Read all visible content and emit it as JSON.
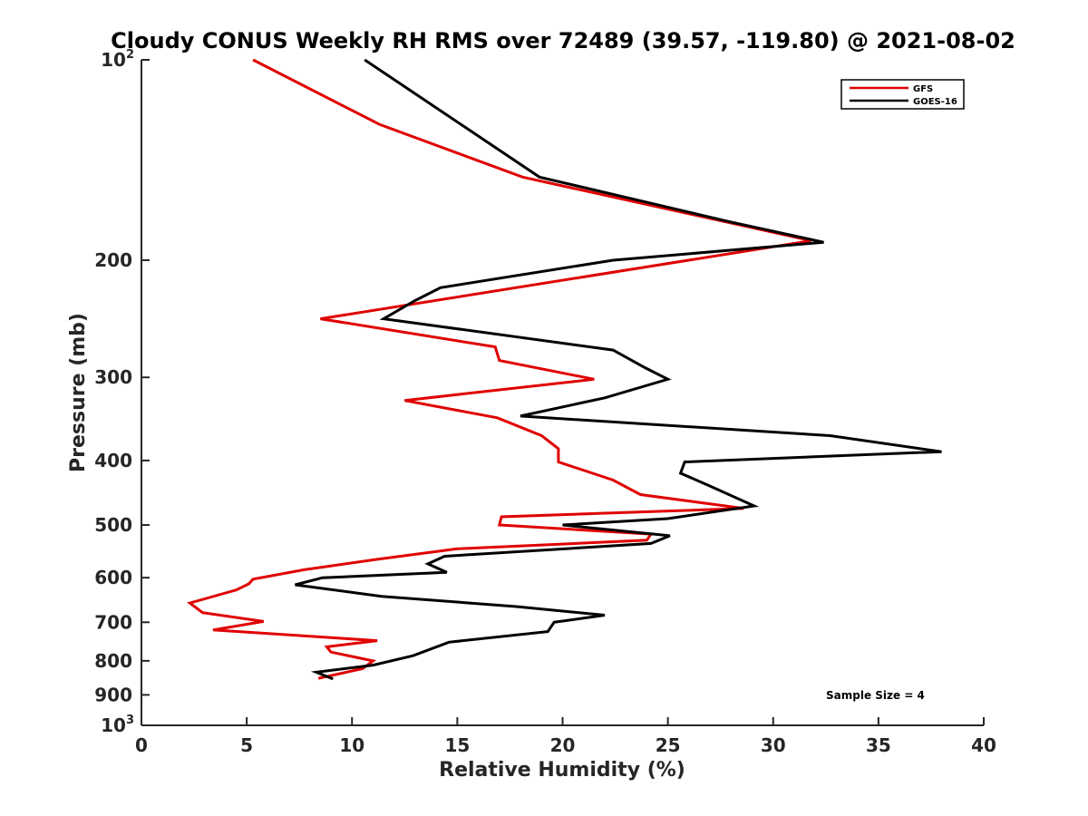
{
  "chart_data": {
    "type": "line",
    "title": "Cloudy CONUS Weekly RH RMS over 72489 (39.57, -119.80) @ 2021-08-02",
    "xlabel": "Relative Humidity (%)",
    "ylabel": "Pressure (mb)",
    "xlim": [
      0,
      40
    ],
    "ylim": [
      100,
      1000
    ],
    "y_scale": "log",
    "y_reversed": true,
    "x_ticks": [
      0,
      5,
      10,
      15,
      20,
      25,
      30,
      35,
      40
    ],
    "x_tick_labels": [
      "0",
      "5",
      "10",
      "15",
      "20",
      "25",
      "30",
      "35",
      "40"
    ],
    "y_ticks": [
      100,
      200,
      300,
      400,
      500,
      600,
      700,
      800,
      900,
      1000
    ],
    "y_tick_labels": [
      {
        "base": "10",
        "exp": "2"
      },
      {
        "base": "200"
      },
      {
        "base": "300"
      },
      {
        "base": "400"
      },
      {
        "base": "500"
      },
      {
        "base": "600"
      },
      {
        "base": "700"
      },
      {
        "base": "800"
      },
      {
        "base": "900"
      },
      {
        "base": "10",
        "exp": "3"
      }
    ],
    "grid": false,
    "legend_position": "top-right",
    "annotation": "Sample Size = 4",
    "series": [
      {
        "name": "GFS",
        "color": "#e00000",
        "points": [
          [
            5.3,
            100
          ],
          [
            11.3,
            125
          ],
          [
            18.1,
            150
          ],
          [
            27.7,
            175
          ],
          [
            31.8,
            187
          ],
          [
            8.5,
            245
          ],
          [
            16.8,
            270
          ],
          [
            17.0,
            283
          ],
          [
            21.5,
            302
          ],
          [
            12.5,
            325
          ],
          [
            16.9,
            345
          ],
          [
            19.0,
            367
          ],
          [
            19.8,
            384
          ],
          [
            19.8,
            402
          ],
          [
            22.4,
            428
          ],
          [
            23.7,
            450
          ],
          [
            28.6,
            472
          ],
          [
            17.1,
            486
          ],
          [
            17.0,
            500
          ],
          [
            24.2,
            516
          ],
          [
            24.0,
            527
          ],
          [
            15.0,
            543
          ],
          [
            11.2,
            563
          ],
          [
            7.7,
            584
          ],
          [
            5.3,
            603
          ],
          [
            5.1,
            613
          ],
          [
            4.5,
            626
          ],
          [
            2.3,
            655
          ],
          [
            2.9,
            677
          ],
          [
            5.8,
            698
          ],
          [
            3.4,
            719
          ],
          [
            11.2,
            746
          ],
          [
            8.8,
            762
          ],
          [
            9.0,
            776
          ],
          [
            11.0,
            800
          ],
          [
            10.5,
            822
          ],
          [
            8.4,
            850
          ]
        ]
      },
      {
        "name": "GOES-16",
        "color": "#000000",
        "points": [
          [
            10.6,
            100
          ],
          [
            18.9,
            150
          ],
          [
            27.9,
            175
          ],
          [
            32.4,
            188
          ],
          [
            22.4,
            200
          ],
          [
            14.2,
            220
          ],
          [
            13.0,
            230
          ],
          [
            11.5,
            245
          ],
          [
            22.4,
            273
          ],
          [
            23.9,
            290
          ],
          [
            25.0,
            302
          ],
          [
            22.0,
            322
          ],
          [
            18.0,
            343
          ],
          [
            32.7,
            367
          ],
          [
            38.0,
            388
          ],
          [
            25.8,
            402
          ],
          [
            25.6,
            418
          ],
          [
            27.0,
            437
          ],
          [
            29.1,
            468
          ],
          [
            25.0,
            489
          ],
          [
            20.0,
            500
          ],
          [
            25.1,
            519
          ],
          [
            24.2,
            533
          ],
          [
            14.4,
            557
          ],
          [
            13.6,
            572
          ],
          [
            14.5,
            589
          ],
          [
            8.6,
            600
          ],
          [
            7.3,
            615
          ],
          [
            11.4,
            640
          ],
          [
            17.8,
            663
          ],
          [
            22.0,
            683
          ],
          [
            19.6,
            700
          ],
          [
            19.3,
            723
          ],
          [
            14.6,
            750
          ],
          [
            12.9,
            786
          ],
          [
            11.0,
            812
          ],
          [
            8.3,
            832
          ],
          [
            9.1,
            852
          ]
        ]
      }
    ]
  },
  "axis_color": "#262626"
}
